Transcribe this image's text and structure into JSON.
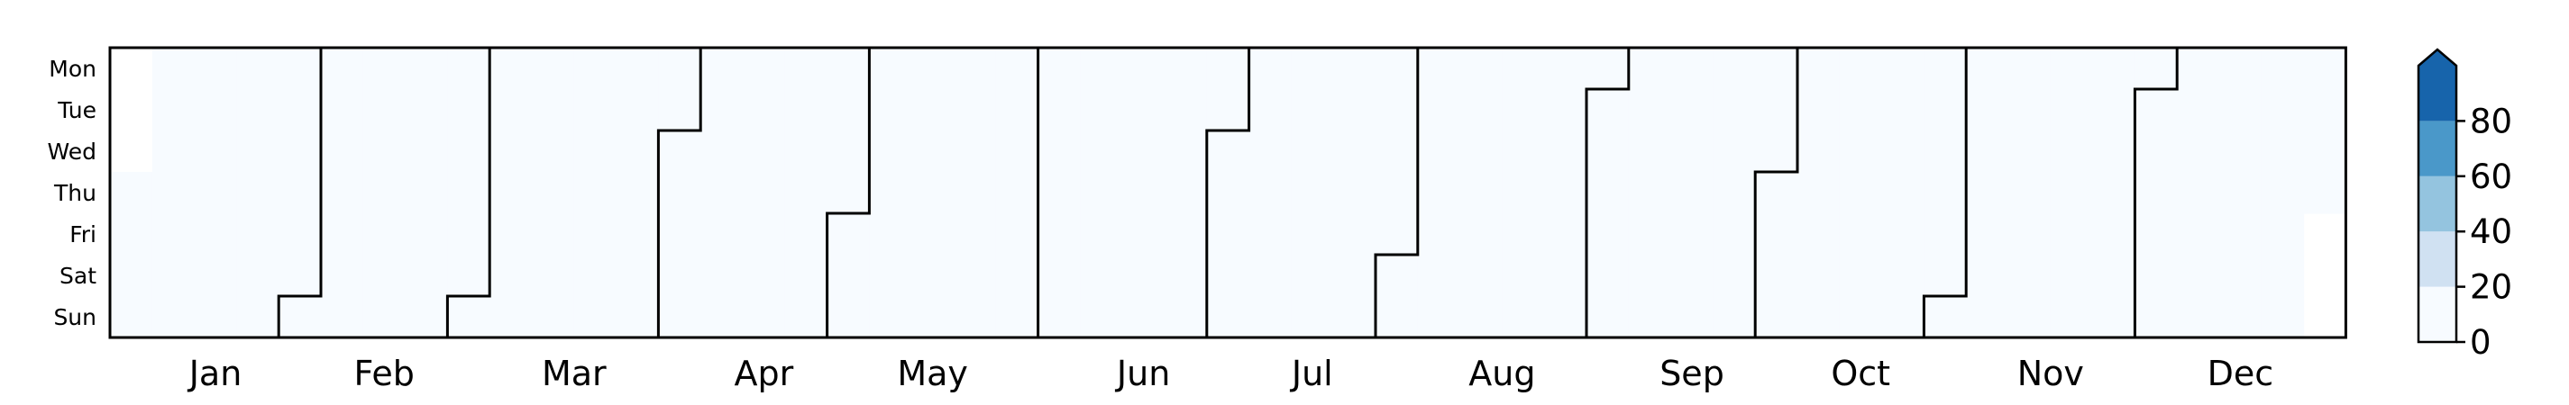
{
  "chart_data": {
    "type": "heatmap",
    "title": "",
    "xlabel": "",
    "ylabel": "",
    "days": [
      "Mon",
      "Tue",
      "Wed",
      "Thu",
      "Fri",
      "Sat",
      "Sun"
    ],
    "months": [
      "Jan",
      "Feb",
      "Mar",
      "Apr",
      "May",
      "Jun",
      "Jul",
      "Aug",
      "Sep",
      "Oct",
      "Nov",
      "Dec"
    ],
    "first_weekday": 3,
    "weeks": 53,
    "color_bins": [
      {
        "min": 0,
        "max": 20,
        "color": "#f7fbff"
      },
      {
        "min": 20,
        "max": 40,
        "color": "#d0e1f2"
      },
      {
        "min": 40,
        "max": 60,
        "color": "#94c4df"
      },
      {
        "min": 60,
        "max": 80,
        "color": "#4a98c9"
      },
      {
        "min": 80,
        "max": 100,
        "color": "#1764ab"
      }
    ],
    "colorbar": {
      "ticks": [
        0,
        20,
        40,
        60,
        80
      ],
      "range": [
        0,
        100
      ],
      "extend": "max"
    },
    "values": [
      [
        0,
        0,
        0,
        0,
        0,
        0,
        0,
        0,
        0,
        0,
        0,
        0,
        0,
        0,
        0,
        0,
        0,
        0,
        0,
        0,
        0,
        0,
        0,
        0,
        0,
        0,
        0,
        0,
        0,
        0,
        0,
        0,
        0,
        0,
        0,
        0,
        0,
        0,
        0,
        0,
        0,
        0,
        0,
        0,
        0,
        0,
        0,
        0,
        0,
        0,
        0,
        0,
        0,
        0,
        0,
        0,
        0,
        0,
        0,
        0,
        0,
        0,
        0,
        0,
        0,
        0,
        0,
        0,
        0,
        0,
        0,
        0,
        0,
        0,
        0,
        0,
        0,
        0,
        0,
        0,
        0,
        0,
        0,
        0,
        0,
        0,
        0,
        0,
        0,
        0,
        0,
        0,
        0,
        0,
        0,
        0,
        0,
        0,
        0,
        0,
        0,
        0,
        0,
        0,
        0,
        0,
        0,
        0,
        0,
        0,
        0,
        0,
        0,
        0,
        0,
        0,
        0,
        0,
        0,
        0,
        0,
        0,
        0,
        0,
        0,
        0,
        0,
        0,
        0,
        0,
        0,
        0,
        0,
        0,
        0,
        0,
        0,
        0,
        0,
        0,
        0,
        0,
        0,
        0,
        0,
        0,
        0,
        0,
        0,
        0,
        0,
        0,
        0,
        0,
        0,
        0,
        0,
        0,
        0,
        0,
        0,
        0,
        0,
        0,
        0,
        0,
        0,
        0,
        0,
        0,
        0,
        0,
        0,
        0,
        0,
        0,
        0,
        0,
        0,
        0,
        0,
        0,
        0,
        0,
        0,
        0,
        0,
        0,
        0,
        0,
        0,
        0,
        0,
        0,
        0,
        0,
        0,
        0,
        0,
        0,
        0,
        0,
        0,
        0,
        0,
        0,
        0,
        0,
        0,
        0,
        0,
        0,
        0,
        0,
        0,
        0,
        0,
        0,
        0,
        0,
        0,
        0,
        0,
        0,
        0,
        0,
        0,
        0,
        0,
        0,
        0,
        0,
        0,
        0,
        0,
        0,
        0,
        0,
        0,
        0,
        0,
        0,
        0,
        0,
        0,
        0,
        0,
        0,
        0,
        0,
        0,
        0,
        0,
        0,
        0,
        0,
        0,
        0,
        0,
        0,
        0,
        0,
        0,
        0,
        0,
        0,
        0,
        0,
        0,
        0,
        0,
        0,
        0,
        0,
        0,
        0,
        0,
        0,
        0,
        0,
        0,
        0,
        0,
        0,
        0,
        0,
        0,
        0,
        0,
        0,
        0,
        0,
        0,
        0,
        0,
        0,
        0,
        0,
        0,
        0,
        0,
        0,
        0,
        0,
        0,
        0,
        0,
        0,
        0,
        0,
        0,
        0,
        0,
        0,
        0,
        0,
        0,
        0,
        0,
        0,
        0,
        0,
        0,
        0,
        0,
        0,
        0,
        0,
        0,
        0,
        0,
        0,
        0,
        0,
        0,
        0,
        0,
        0,
        0,
        0,
        0,
        0,
        0,
        0,
        0,
        0,
        0,
        0,
        0,
        0,
        0,
        0,
        0,
        0,
        0,
        0,
        0,
        0,
        0,
        0,
        0,
        0,
        0
      ]
    ]
  }
}
